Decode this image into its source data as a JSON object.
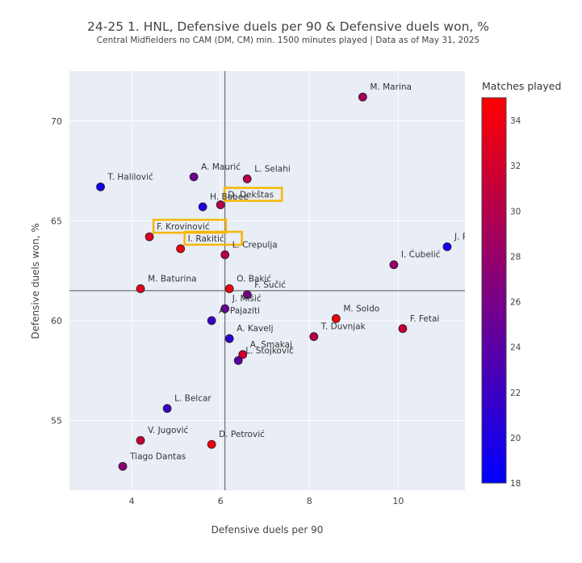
{
  "chart_data": {
    "type": "scatter",
    "title": "24-25 1. HNL, Defensive duels per 90 & Defensive duels won, %",
    "subtitle": "Central Midfielders no CAM (DM, CM) min. 1500 minutes played | Data as of May 31, 2025",
    "xlabel": "Defensive duels per 90",
    "ylabel": "Defensive duels won, %",
    "xlim": [
      2.6,
      11.5
    ],
    "ylim": [
      51.5,
      72.5
    ],
    "xticks": [
      4,
      6,
      8,
      10
    ],
    "yticks": [
      55,
      60,
      65,
      70
    ],
    "reference_lines": {
      "x": 6.1,
      "y": 61.5
    },
    "grid": true,
    "color_scale": {
      "title": "Matches played",
      "min": 18,
      "max": 35,
      "ticks": [
        18,
        20,
        22,
        24,
        26,
        28,
        30,
        32,
        34
      ],
      "low_color": "#0000ff",
      "high_color": "#ff0000"
    },
    "highlight_color": "#f5b700",
    "points": [
      {
        "name": "M. Marina",
        "x": 9.2,
        "y": 71.2,
        "matches": 29,
        "highlight": false
      },
      {
        "name": "T. Halilović",
        "x": 3.3,
        "y": 66.7,
        "matches": 19,
        "highlight": false
      },
      {
        "name": "A. Maurić",
        "x": 5.4,
        "y": 67.2,
        "matches": 25,
        "highlight": false
      },
      {
        "name": "L. Selahi",
        "x": 6.6,
        "y": 67.1,
        "matches": 30,
        "highlight": false
      },
      {
        "name": "D. Dekštas",
        "x": 6.0,
        "y": 65.8,
        "matches": 30,
        "highlight": true
      },
      {
        "name": "H. Bobee",
        "x": 5.6,
        "y": 65.7,
        "matches": 20,
        "highlight": false
      },
      {
        "name": "F. Krovinović",
        "x": 4.4,
        "y": 64.2,
        "matches": 33,
        "highlight": true
      },
      {
        "name": "I. Rakitić",
        "x": 5.1,
        "y": 63.6,
        "matches": 34,
        "highlight": true
      },
      {
        "name": "L. Crepulja",
        "x": 6.1,
        "y": 63.3,
        "matches": 30,
        "highlight": false
      },
      {
        "name": "J. Pri",
        "x": 11.1,
        "y": 63.7,
        "matches": 19,
        "highlight": false
      },
      {
        "name": "I. Ćubelić",
        "x": 9.9,
        "y": 62.8,
        "matches": 28,
        "highlight": false
      },
      {
        "name": "M. Baturina",
        "x": 4.2,
        "y": 61.6,
        "matches": 33,
        "highlight": false
      },
      {
        "name": "O. Bakić",
        "x": 6.2,
        "y": 61.6,
        "matches": 34,
        "highlight": false
      },
      {
        "name": "F. Sučić",
        "x": 6.6,
        "y": 61.3,
        "matches": 26,
        "highlight": false
      },
      {
        "name": "J. Mišić",
        "x": 6.1,
        "y": 60.6,
        "matches": 25,
        "highlight": false
      },
      {
        "name": "A. Pajaziti",
        "x": 5.8,
        "y": 60.0,
        "matches": 22,
        "highlight": false
      },
      {
        "name": "M. Soldo",
        "x": 8.6,
        "y": 60.1,
        "matches": 34,
        "highlight": false
      },
      {
        "name": "F. Fetai",
        "x": 10.1,
        "y": 59.6,
        "matches": 31,
        "highlight": false
      },
      {
        "name": "T. Duvnjak",
        "x": 8.1,
        "y": 59.2,
        "matches": 30,
        "highlight": false
      },
      {
        "name": "A. Kavelj",
        "x": 6.2,
        "y": 59.1,
        "matches": 21,
        "highlight": false
      },
      {
        "name": "A. Smakaj",
        "x": 6.5,
        "y": 58.3,
        "matches": 32,
        "highlight": false
      },
      {
        "name": "L. Stojković",
        "x": 6.4,
        "y": 58.0,
        "matches": 24,
        "highlight": false
      },
      {
        "name": "L. Belcar",
        "x": 4.8,
        "y": 55.6,
        "matches": 22,
        "highlight": false
      },
      {
        "name": "V. Jugović",
        "x": 4.2,
        "y": 54.0,
        "matches": 31,
        "highlight": false
      },
      {
        "name": "D. Petrović",
        "x": 5.8,
        "y": 53.8,
        "matches": 34,
        "highlight": false
      },
      {
        "name": "Tiago Dantas",
        "x": 3.8,
        "y": 52.7,
        "matches": 27,
        "highlight": false
      }
    ]
  }
}
